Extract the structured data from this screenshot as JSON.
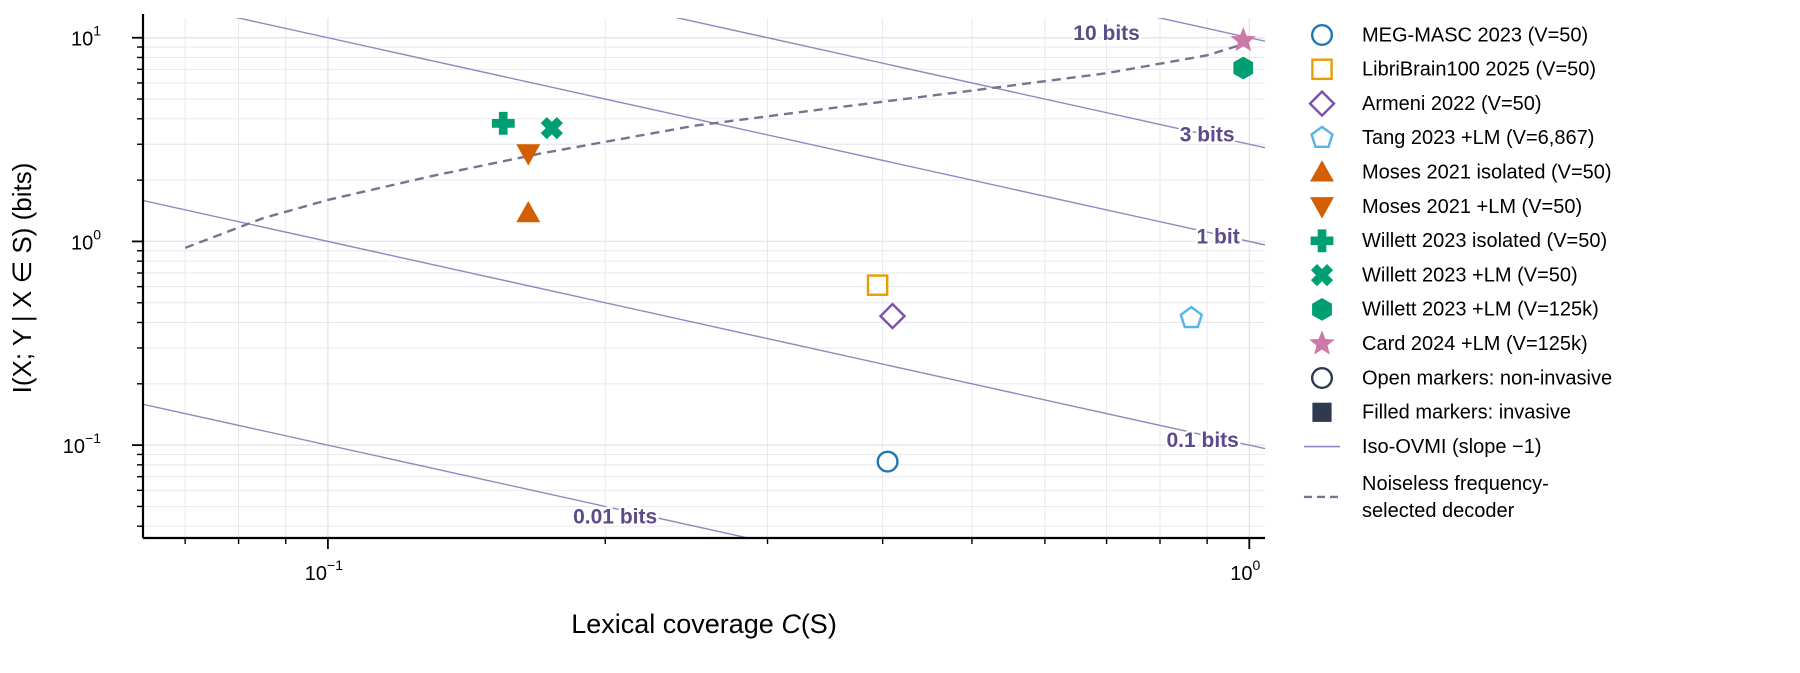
{
  "chart_data": {
    "type": "scatter",
    "xlabel": {
      "main": "Lexical coverage ",
      "italic": "C",
      "tail": "(S)"
    },
    "ylabel": "I(X; Y | X ∈ S) (bits)",
    "xscale": "log",
    "yscale": "log",
    "xlim": [
      0.063,
      1.04
    ],
    "ylim": [
      0.035,
      12.5
    ],
    "xticks": [
      {
        "value": 0.1,
        "base": "10",
        "exp": "−1"
      },
      {
        "value": 1,
        "base": "10",
        "exp": "0"
      }
    ],
    "yticks": [
      {
        "value": 0.1,
        "base": "10",
        "exp": "−1"
      },
      {
        "value": 1,
        "base": "10",
        "exp": "0"
      },
      {
        "value": 10,
        "base": "10",
        "exp": "1"
      }
    ],
    "grid": true,
    "legend_position": "right",
    "colors": {
      "iso": "#8e8abf",
      "curve": "#757591",
      "iso_label": "#5b4b8a",
      "axes": "#000000",
      "grid": "#e6e6ec",
      "blue": "#1f77b4",
      "orange": "#e69f00",
      "purple": "#7b52ab",
      "sky": "#56b4e9",
      "vermillion": "#d55e00",
      "green": "#009e73",
      "pink": "#cc79a7",
      "dark": "#2f3a4f"
    },
    "iso_lines": [
      {
        "level": 0.01,
        "label": "0.01 bits",
        "label_x": 0.205,
        "label_y": 0.044
      },
      {
        "level": 0.1,
        "label": "0.1 bits",
        "label_x": 0.89,
        "label_y": 0.104
      },
      {
        "level": 1,
        "label": "1 bit",
        "label_x": 0.925,
        "label_y": 1.04
      },
      {
        "level": 3,
        "label": "3 bits",
        "label_x": 0.9,
        "label_y": 3.3
      },
      {
        "level": 10,
        "label": "10 bits",
        "label_x": 0.7,
        "label_y": 10.4
      }
    ],
    "noiseless_curve": {
      "x": [
        0.07,
        0.085,
        0.1,
        0.13,
        0.17,
        0.25,
        0.35,
        0.5,
        0.7,
        0.9,
        0.985
      ],
      "y": [
        0.93,
        1.3,
        1.6,
        2.1,
        2.7,
        3.7,
        4.5,
        5.5,
        6.7,
        8.2,
        9.3
      ]
    },
    "series": [
      {
        "name": "MEG-MASC 2023 (V=50)",
        "marker": "circle",
        "filled": false,
        "color": "#1f77b4",
        "x": [
          0.405
        ],
        "y": [
          0.083
        ]
      },
      {
        "name": "LibriBrain100 2025 (V=50)",
        "marker": "square",
        "filled": false,
        "color": "#e69f00",
        "x": [
          0.395
        ],
        "y": [
          0.61
        ]
      },
      {
        "name": "Armeni 2022 (V=50)",
        "marker": "diamond",
        "filled": false,
        "color": "#7b52ab",
        "x": [
          0.41
        ],
        "y": [
          0.43
        ]
      },
      {
        "name": "Tang 2023 +LM (V=6,867)",
        "marker": "pentagon",
        "filled": false,
        "color": "#56b4e9",
        "x": [
          0.865
        ],
        "y": [
          0.42
        ]
      },
      {
        "name": "Moses 2021 isolated (V=50)",
        "marker": "triangle-up",
        "filled": true,
        "color": "#d55e00",
        "x": [
          0.165
        ],
        "y": [
          1.38
        ]
      },
      {
        "name": "Moses 2021 +LM (V=50)",
        "marker": "triangle-down",
        "filled": true,
        "color": "#d55e00",
        "x": [
          0.165
        ],
        "y": [
          2.7
        ]
      },
      {
        "name": "Willett 2023 isolated (V=50)",
        "marker": "plus",
        "filled": true,
        "color": "#009e73",
        "x": [
          0.155
        ],
        "y": [
          3.8
        ]
      },
      {
        "name": "Willett 2023 +LM (V=50)",
        "marker": "x",
        "filled": true,
        "color": "#009e73",
        "x": [
          0.175
        ],
        "y": [
          3.6
        ]
      },
      {
        "name": "Willett 2023 +LM (V=125k)",
        "marker": "hexagon",
        "filled": true,
        "color": "#009e73",
        "x": [
          0.985
        ],
        "y": [
          7.1
        ]
      },
      {
        "name": "Card 2024 +LM (V=125k)",
        "marker": "star",
        "filled": true,
        "color": "#cc79a7",
        "x": [
          0.985
        ],
        "y": [
          9.7
        ]
      }
    ],
    "legend_extra": [
      {
        "name": "Open markers: non-invasive",
        "marker": "circle",
        "filled": false,
        "color": "#2f3a4f"
      },
      {
        "name": "Filled markers: invasive",
        "marker": "square",
        "filled": true,
        "color": "#2f3a4f"
      },
      {
        "name": "Iso-OVMI (slope −1)",
        "marker": "line",
        "color": "#8e8abf"
      },
      {
        "name": "Noiseless frequency-selected decoder",
        "lines": [
          "Noiseless frequency-",
          "selected decoder"
        ],
        "marker": "dashed",
        "color": "#757591"
      }
    ]
  }
}
